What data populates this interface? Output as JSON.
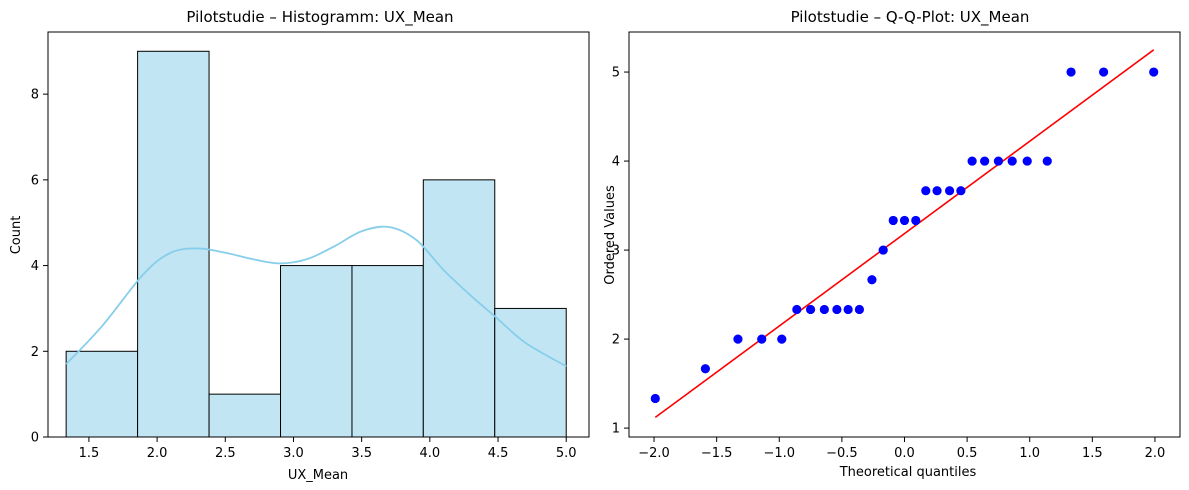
{
  "chart_data": [
    {
      "type": "bar",
      "subtype": "histogram",
      "title": "Pilotstudie – Histogramm: UX_Mean",
      "xlabel": "UX_Mean",
      "ylabel": "Count",
      "xlim": [
        1.2,
        5.167
      ],
      "ylim": [
        0,
        9.45
      ],
      "bin_edges": [
        1.333,
        1.857,
        2.381,
        2.905,
        3.429,
        3.952,
        4.476,
        5.0
      ],
      "values": [
        2,
        9,
        1,
        4,
        4,
        6,
        3
      ],
      "xticks": [
        1.5,
        2.0,
        2.5,
        3.0,
        3.5,
        4.0,
        4.5,
        5.0
      ],
      "xtick_labels": [
        "1.5",
        "2.0",
        "2.5",
        "3.0",
        "3.5",
        "4.0",
        "4.5",
        "5.0"
      ],
      "yticks": [
        0,
        2,
        4,
        6,
        8
      ],
      "ytick_labels": [
        "0",
        "2",
        "4",
        "6",
        "8"
      ],
      "kde": {
        "x": [
          1.333,
          1.6,
          1.9,
          2.1,
          2.3,
          2.5,
          2.7,
          2.9,
          3.1,
          3.3,
          3.5,
          3.7,
          3.9,
          4.1,
          4.3,
          4.5,
          4.7,
          5.0
        ],
        "y": [
          1.7,
          2.6,
          3.8,
          4.3,
          4.4,
          4.3,
          4.15,
          4.05,
          4.15,
          4.45,
          4.8,
          4.9,
          4.6,
          3.9,
          3.3,
          2.75,
          2.2,
          1.65
        ]
      },
      "colors": {
        "bar_fill": "#c2e5f4",
        "bar_edge": "#000000",
        "kde_line": "#87ceeb"
      },
      "grid": false
    },
    {
      "type": "scatter",
      "subtype": "qq-plot",
      "title": "Pilotstudie – Q-Q-Plot: UX_Mean",
      "xlabel": "Theoretical quantiles",
      "ylabel": "Ordered Values",
      "xlim": [
        -2.2,
        2.2
      ],
      "ylim": [
        0.9,
        5.45
      ],
      "xticks": [
        -2.0,
        -1.5,
        -1.0,
        -0.5,
        0.0,
        0.5,
        1.0,
        1.5,
        2.0
      ],
      "xtick_labels": [
        "−2.0",
        "−1.5",
        "−1.0",
        "−0.5",
        "0.0",
        "0.5",
        "1.0",
        "1.5",
        "2.0"
      ],
      "yticks": [
        1,
        2,
        3,
        4,
        5
      ],
      "ytick_labels": [
        "1",
        "2",
        "3",
        "4",
        "5"
      ],
      "points": {
        "x": [
          -1.99,
          -1.59,
          -1.33,
          -1.14,
          -0.98,
          -0.86,
          -0.75,
          -0.64,
          -0.54,
          -0.45,
          -0.36,
          -0.26,
          -0.17,
          -0.09,
          0.0,
          0.09,
          0.17,
          0.26,
          0.36,
          0.45,
          0.54,
          0.64,
          0.75,
          0.86,
          0.98,
          1.14,
          1.33,
          1.59,
          1.99
        ],
        "y": [
          1.333,
          1.667,
          2.0,
          2.0,
          2.0,
          2.333,
          2.333,
          2.333,
          2.333,
          2.333,
          2.333,
          2.667,
          3.0,
          3.333,
          3.333,
          3.333,
          3.667,
          3.667,
          3.667,
          3.667,
          4.0,
          4.0,
          4.0,
          4.0,
          4.0,
          4.0,
          5.0,
          5.0,
          5.0
        ]
      },
      "fit_line": {
        "x": [
          -1.99,
          1.99
        ],
        "y": [
          1.12,
          5.25
        ]
      },
      "colors": {
        "points": "#0000ff",
        "line": "#ff0000"
      },
      "grid": false
    }
  ]
}
